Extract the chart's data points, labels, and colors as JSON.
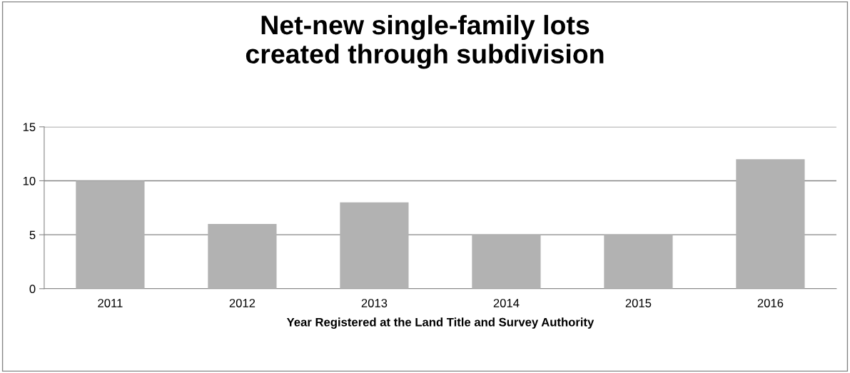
{
  "chart_data": {
    "type": "bar",
    "title": "Net-new single-family lots\ncreated through subdivision",
    "xlabel": "Year Registered at the Land Title and Survey Authority",
    "categories": [
      "2011",
      "2012",
      "2013",
      "2014",
      "2015",
      "2016"
    ],
    "values": [
      10,
      6,
      8,
      5,
      5,
      12
    ],
    "color": "#b2b2b2",
    "ylim": [
      0,
      15
    ],
    "yticks": [
      0,
      5,
      10,
      15
    ],
    "grid": "y",
    "legend": false
  }
}
